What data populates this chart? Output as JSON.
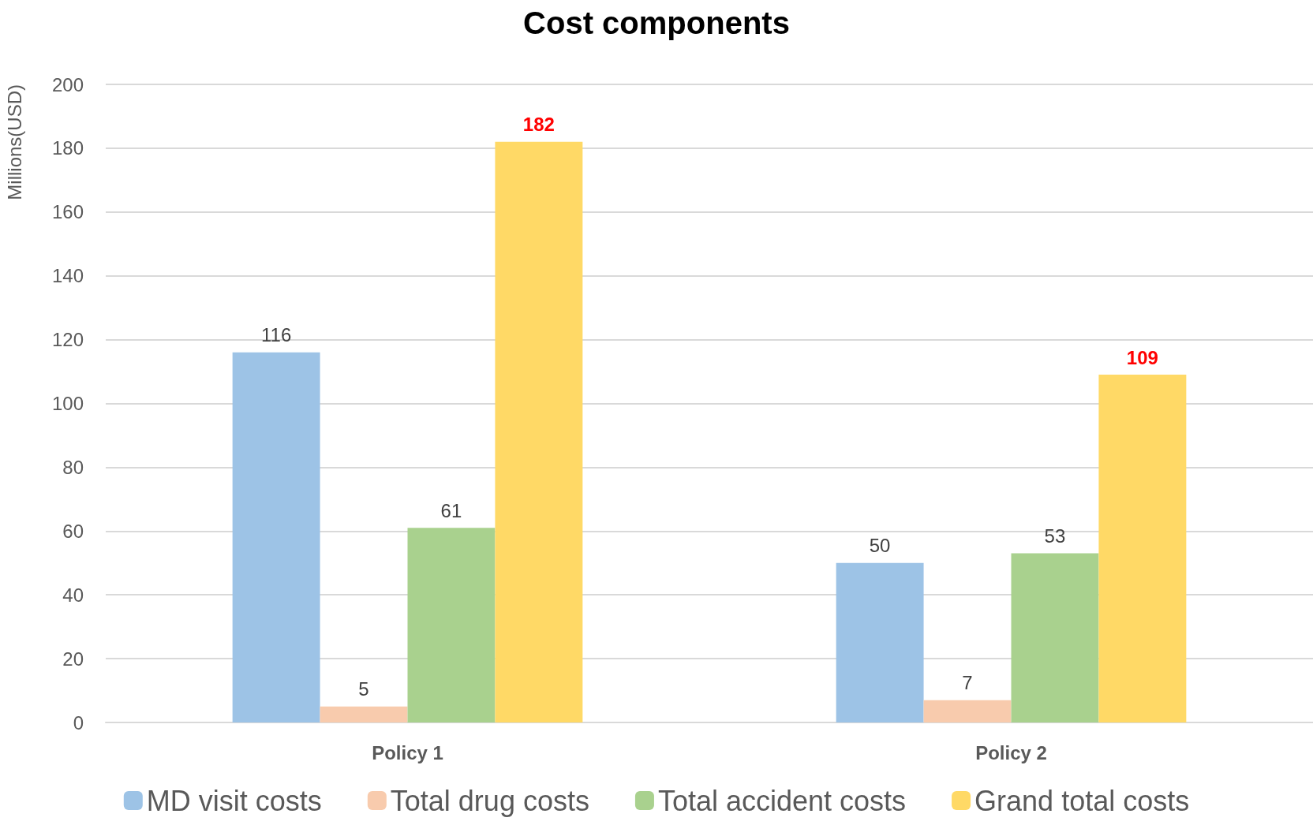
{
  "chart_data": {
    "type": "bar",
    "title": "Cost components",
    "ylabel": "Millions(USD)",
    "categories": [
      "Policy 1",
      "Policy 2"
    ],
    "series": [
      {
        "name": "MD visit costs",
        "color": "#9dc3e6",
        "values": [
          116,
          50
        ]
      },
      {
        "name": "Total drug costs",
        "color": "#f8cbad",
        "values": [
          5,
          7
        ]
      },
      {
        "name": "Total accident costs",
        "color": "#a9d18e",
        "values": [
          61,
          53
        ]
      },
      {
        "name": "Grand total costs",
        "color": "#ffd966",
        "values": [
          182,
          109
        ]
      }
    ],
    "ylim": [
      0,
      200
    ],
    "yticks": [
      0,
      20,
      40,
      60,
      80,
      100,
      120,
      140,
      160,
      180,
      200
    ],
    "grid": "y",
    "legend": "bottom",
    "data_labels": true
  }
}
